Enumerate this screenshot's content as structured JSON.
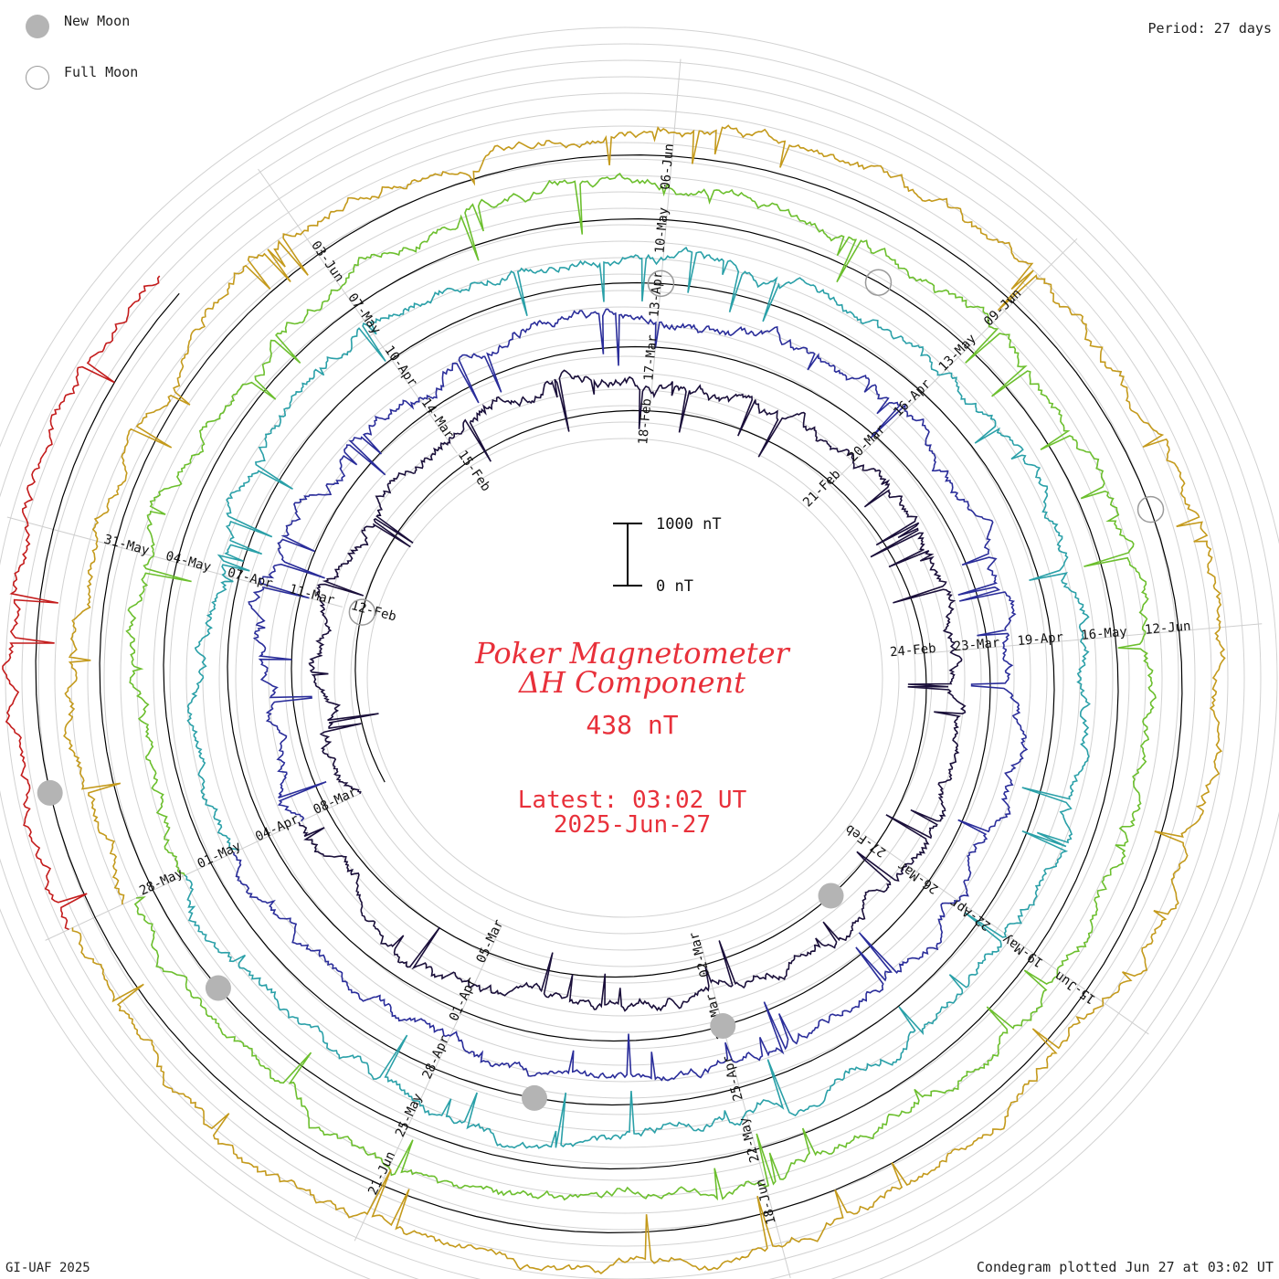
{
  "legend": {
    "new_moon_label": "New Moon",
    "full_moon_label": "Full Moon",
    "new_moon_color": "#b4b4b4",
    "full_moon_color": "#9a9a9a"
  },
  "period_label": "Period: 27 days",
  "footer": {
    "credit": "GI-UAF 2025",
    "plotted": "Condegram plotted Jun 27 at 03:02 UT"
  },
  "center": {
    "title_line1": "Poker Magnetometer",
    "title_line2": "ΔH Component",
    "value": "438 nT",
    "latest": "Latest: 03:02 UT",
    "date": "2025-Jun-27",
    "text_color": "#e8303a"
  },
  "scale_bar": {
    "top_label": "1000 nT",
    "bottom_label": "0 nT"
  },
  "chart_data": {
    "type": "line",
    "title": "Poker Magnetometer ΔH Component",
    "latest_value_nT": 438,
    "period_days": 27,
    "scale_nT": [
      0,
      1000
    ],
    "grid": true,
    "rotations": [
      {
        "start": "2025-Feb-09",
        "color": "#1a0f3a",
        "date_labels": [
          {
            "text": "12-Feb",
            "day": 3
          },
          {
            "text": "15-Feb",
            "day": 6
          },
          {
            "text": "18-Feb",
            "day": 9
          },
          {
            "text": "21-Feb",
            "day": 12
          },
          {
            "text": "24-Feb",
            "day": 15
          },
          {
            "text": "27-Feb",
            "day": 18
          },
          {
            "text": "02-Mar",
            "day": 21
          },
          {
            "text": "05-Mar",
            "day": 24
          }
        ]
      },
      {
        "start": "2025-Mar-08",
        "color": "#2a2d9a",
        "date_labels": [
          {
            "text": "08-Mar",
            "day": 0
          },
          {
            "text": "11-Mar",
            "day": 3
          },
          {
            "text": "14-Mar",
            "day": 6
          },
          {
            "text": "17-Mar",
            "day": 9
          },
          {
            "text": "20-Mar",
            "day": 12
          },
          {
            "text": "23-Mar",
            "day": 15
          },
          {
            "text": "26-Mar",
            "day": 18
          },
          {
            "text": "29-Mar",
            "day": 21
          },
          {
            "text": "01-Apr",
            "day": 24
          }
        ]
      },
      {
        "start": "2025-Apr-04",
        "color": "#2aa0a8",
        "date_labels": [
          {
            "text": "04-Apr",
            "day": 0
          },
          {
            "text": "07-Apr",
            "day": 3
          },
          {
            "text": "10-Apr",
            "day": 6
          },
          {
            "text": "13-Apr",
            "day": 9
          },
          {
            "text": "16-Apr",
            "day": 12
          },
          {
            "text": "19-Apr",
            "day": 15
          },
          {
            "text": "22-Apr",
            "day": 18
          },
          {
            "text": "25-Apr",
            "day": 21
          },
          {
            "text": "28-Apr",
            "day": 24
          }
        ]
      },
      {
        "start": "2025-May-01",
        "color": "#6cbf2e",
        "date_labels": [
          {
            "text": "01-May",
            "day": 0
          },
          {
            "text": "04-May",
            "day": 3
          },
          {
            "text": "07-May",
            "day": 6
          },
          {
            "text": "10-May",
            "day": 9
          },
          {
            "text": "13-May",
            "day": 12
          },
          {
            "text": "16-May",
            "day": 15
          },
          {
            "text": "19-May",
            "day": 18
          },
          {
            "text": "22-May",
            "day": 21
          },
          {
            "text": "25-May",
            "day": 24
          }
        ]
      },
      {
        "start": "2025-May-28",
        "color": "#c49a1c",
        "date_labels": [
          {
            "text": "28-May",
            "day": 0
          },
          {
            "text": "31-May",
            "day": 3
          },
          {
            "text": "03-Jun",
            "day": 6
          },
          {
            "text": "06-Jun",
            "day": 9
          },
          {
            "text": "09-Jun",
            "day": 12
          },
          {
            "text": "12-Jun",
            "day": 15
          },
          {
            "text": "15-Jun",
            "day": 18
          },
          {
            "text": "18-Jun",
            "day": 21
          },
          {
            "text": "21-Jun",
            "day": 24
          }
        ]
      },
      {
        "start": "2025-Jun-24",
        "color": "#c41c1c",
        "date_labels": []
      }
    ],
    "moon_markers": [
      {
        "phase": "new",
        "date": "2025-Feb-28"
      },
      {
        "phase": "full",
        "date": "2025-Feb-12"
      },
      {
        "phase": "new",
        "date": "2025-Mar-29"
      },
      {
        "phase": "full",
        "date": "2025-Apr-13"
      },
      {
        "phase": "new",
        "date": "2025-Apr-27"
      },
      {
        "phase": "full",
        "date": "2025-May-12"
      },
      {
        "phase": "new",
        "date": "2025-May-27"
      },
      {
        "phase": "full",
        "date": "2025-Jun-11"
      },
      {
        "phase": "new",
        "date": "2025-Jun-25"
      }
    ]
  }
}
